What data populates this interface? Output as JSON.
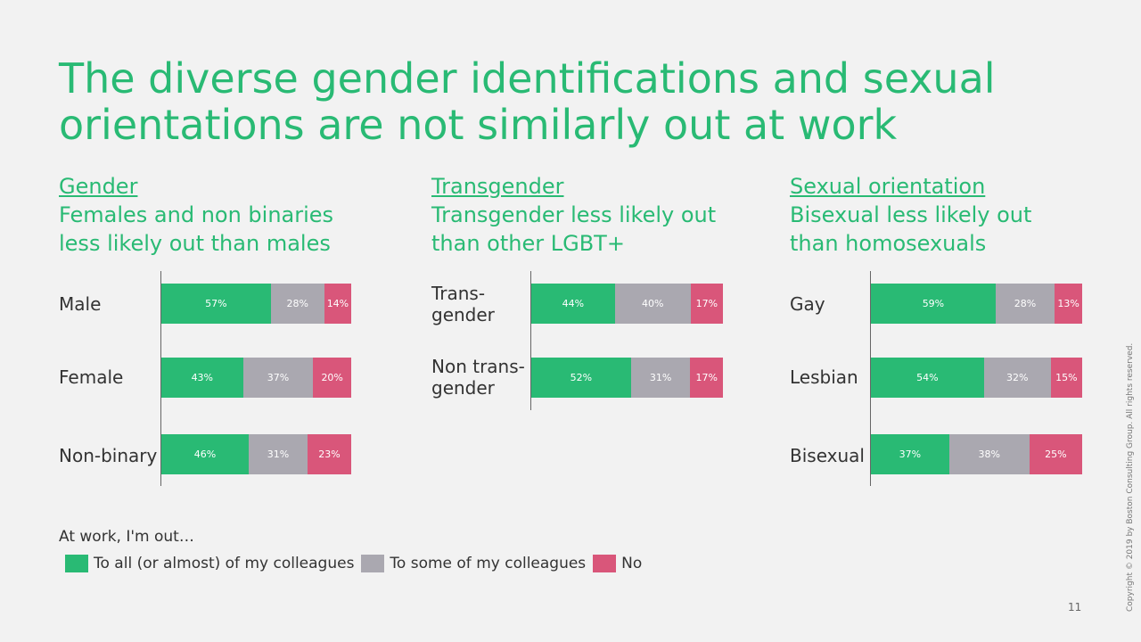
{
  "title": "The diverse gender identifications and sexual orientations are not similarly out at work",
  "colors": {
    "all": "#29ba74",
    "some": "#aaa8b0",
    "no": "#d9567a"
  },
  "panels": [
    {
      "name": "Gender",
      "subtitle_line1": "Females and non binaries",
      "subtitle_line2": "less likely out than males"
    },
    {
      "name": "Transgender",
      "subtitle_line1": "Transgender less likely out",
      "subtitle_line2": "than other LGBT+"
    },
    {
      "name": "Sexual orientation",
      "subtitle_line1": "Bisexual less likely out",
      "subtitle_line2": "than homosexuals"
    }
  ],
  "row_labels": {
    "male": "Male",
    "female": "Female",
    "nonbinary": "Non-binary",
    "trans_l1": "Trans-",
    "trans_l2": "gender",
    "nontrans_l1": "Non trans-",
    "nontrans_l2": "gender",
    "gay": "Gay",
    "lesbian": "Lesbian",
    "bisexual": "Bisexual"
  },
  "chart_data": [
    {
      "type": "bar",
      "stacked": true,
      "orientation": "horizontal",
      "title": "Gender",
      "categories": [
        "Male",
        "Female",
        "Non-binary"
      ],
      "series": [
        {
          "name": "To all (or almost) of my colleagues",
          "values": [
            57,
            43,
            46
          ]
        },
        {
          "name": "To some of my colleagues",
          "values": [
            28,
            37,
            31
          ]
        },
        {
          "name": "No",
          "values": [
            14,
            20,
            23
          ]
        }
      ]
    },
    {
      "type": "bar",
      "stacked": true,
      "orientation": "horizontal",
      "title": "Transgender",
      "categories": [
        "Trans-gender",
        "Non trans-gender"
      ],
      "series": [
        {
          "name": "To all (or almost) of my colleagues",
          "values": [
            44,
            52
          ]
        },
        {
          "name": "To some of my colleagues",
          "values": [
            40,
            31
          ]
        },
        {
          "name": "No",
          "values": [
            17,
            17
          ]
        }
      ]
    },
    {
      "type": "bar",
      "stacked": true,
      "orientation": "horizontal",
      "title": "Sexual orientation",
      "categories": [
        "Gay",
        "Lesbian",
        "Bisexual"
      ],
      "series": [
        {
          "name": "To all (or almost) of my colleagues",
          "values": [
            59,
            54,
            37
          ]
        },
        {
          "name": "To some of my colleagues",
          "values": [
            28,
            32,
            38
          ]
        },
        {
          "name": "No",
          "values": [
            13,
            15,
            25
          ]
        }
      ]
    }
  ],
  "legend": {
    "title": "At work, I'm out…",
    "all": "To all (or almost) of my colleagues",
    "some": "To some of my colleagues",
    "no": "No"
  },
  "page_number": "11",
  "copyright": "Copyright © 2019 by Boston Consulting Group. All rights reserved."
}
